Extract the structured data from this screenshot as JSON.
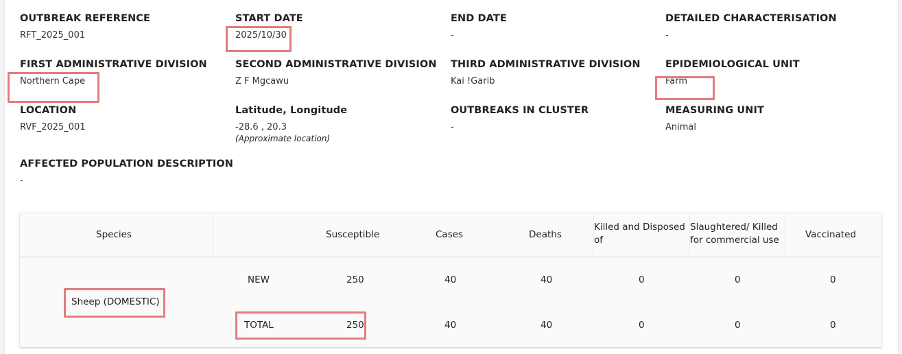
{
  "fields": {
    "outbreak_reference": {
      "label": "OUTBREAK REFERENCE",
      "value": "RFT_2025_001"
    },
    "start_date": {
      "label": "START DATE",
      "value": "2025/10/30"
    },
    "end_date": {
      "label": "END DATE",
      "value": "-"
    },
    "detailed_characterisation": {
      "label": "DETAILED CHARACTERISATION",
      "value": "-"
    },
    "first_admin_division": {
      "label": "FIRST ADMINISTRATIVE DIVISION",
      "value": "Northern Cape"
    },
    "second_admin_division": {
      "label": "SECOND ADMINISTRATIVE DIVISION",
      "value": "Z F Mgcawu"
    },
    "third_admin_division": {
      "label": "THIRD ADMINISTRATIVE DIVISION",
      "value": "Kai !Garib"
    },
    "epidemiological_unit": {
      "label": "EPIDEMIOLOGICAL UNIT",
      "value": "Farm"
    },
    "location": {
      "label": "LOCATION",
      "value": "RVF_2025_001"
    },
    "lat_long": {
      "label": "Latitude, Longitude",
      "value": "-28.6 , 20.3",
      "note": "(Approximate location)"
    },
    "outbreaks_in_cluster": {
      "label": "OUTBREAKS IN CLUSTER",
      "value": "-"
    },
    "measuring_unit": {
      "label": "MEASURING UNIT",
      "value": "Animal"
    },
    "affected_population": {
      "label": "AFFECTED POPULATION DESCRIPTION",
      "value": "-"
    }
  },
  "table": {
    "headers": {
      "species": "Species",
      "susceptible": "Susceptible",
      "cases": "Cases",
      "deaths": "Deaths",
      "killed_line1": "Killed and Disposed",
      "killed_line2": "of",
      "slaughtered_line1": "Slaughtered/ Killed",
      "slaughtered_line2": "for commercial use",
      "vaccinated": "Vaccinated"
    },
    "species": "Sheep (DOMESTIC)",
    "rows": [
      {
        "type": "NEW",
        "susceptible": "250",
        "cases": "40",
        "deaths": "40",
        "killed": "0",
        "slaughtered": "0",
        "vaccinated": "0"
      },
      {
        "type": "TOTAL",
        "susceptible": "250",
        "cases": "40",
        "deaths": "40",
        "killed": "0",
        "slaughtered": "0",
        "vaccinated": "0"
      }
    ]
  },
  "colors": {
    "highlight": "#e57b7b"
  }
}
